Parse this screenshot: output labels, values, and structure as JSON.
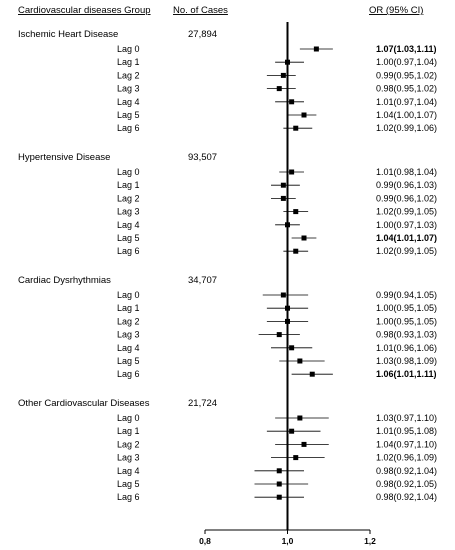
{
  "headers": {
    "group": "Cardiovascular diseases Group",
    "cases": "No. of Cases",
    "or": "OR (95% CI)"
  },
  "chart_data": {
    "type": "forest",
    "xlim": [
      0.8,
      1.2
    ],
    "x_ticks": [
      "0,8",
      "1,0",
      "1,2"
    ],
    "reference_line": 1.0,
    "groups": [
      {
        "name": "Ischemic Heart Disease",
        "cases": "27,894",
        "rows": [
          {
            "label": "Lag 0",
            "or": 1.07,
            "low": 1.03,
            "high": 1.11,
            "ci_text": "1.07(1.03,1.11)",
            "bold": true
          },
          {
            "label": "Lag 1",
            "or": 1.0,
            "low": 0.97,
            "high": 1.04,
            "ci_text": "1.00(0.97,1.04)",
            "bold": false
          },
          {
            "label": "Lag 2",
            "or": 0.99,
            "low": 0.95,
            "high": 1.02,
            "ci_text": "0.99(0.95,1.02)",
            "bold": false
          },
          {
            "label": "Lag 3",
            "or": 0.98,
            "low": 0.95,
            "high": 1.02,
            "ci_text": "0.98(0.95,1.02)",
            "bold": false
          },
          {
            "label": "Lag 4",
            "or": 1.01,
            "low": 0.97,
            "high": 1.04,
            "ci_text": "1.01(0.97,1.04)",
            "bold": false
          },
          {
            "label": "Lag 5",
            "or": 1.04,
            "low": 1.0,
            "high": 1.07,
            "ci_text": "1.04(1.00,1.07)",
            "bold": false
          },
          {
            "label": "Lag 6",
            "or": 1.02,
            "low": 0.99,
            "high": 1.06,
            "ci_text": "1.02(0.99,1.06)",
            "bold": false
          }
        ]
      },
      {
        "name": "Hypertensive Disease",
        "cases": "93,507",
        "rows": [
          {
            "label": "Lag 0",
            "or": 1.01,
            "low": 0.98,
            "high": 1.04,
            "ci_text": "1.01(0.98,1.04)",
            "bold": false
          },
          {
            "label": "Lag 1",
            "or": 0.99,
            "low": 0.96,
            "high": 1.03,
            "ci_text": "0.99(0.96,1.03)",
            "bold": false
          },
          {
            "label": "Lag 2",
            "or": 0.99,
            "low": 0.96,
            "high": 1.02,
            "ci_text": "0.99(0.96,1.02)",
            "bold": false
          },
          {
            "label": "Lag 3",
            "or": 1.02,
            "low": 0.99,
            "high": 1.05,
            "ci_text": "1.02(0.99,1.05)",
            "bold": false
          },
          {
            "label": "Lag 4",
            "or": 1.0,
            "low": 0.97,
            "high": 1.03,
            "ci_text": "1.00(0.97,1.03)",
            "bold": false
          },
          {
            "label": "Lag 5",
            "or": 1.04,
            "low": 1.01,
            "high": 1.07,
            "ci_text": "1.04(1.01,1.07)",
            "bold": true
          },
          {
            "label": "Lag 6",
            "or": 1.02,
            "low": 0.99,
            "high": 1.05,
            "ci_text": "1.02(0.99,1.05)",
            "bold": false
          }
        ]
      },
      {
        "name": "Cardiac Dysrhythmias",
        "cases": "34,707",
        "rows": [
          {
            "label": "Lag 0",
            "or": 0.99,
            "low": 0.94,
            "high": 1.05,
            "ci_text": "0.99(0.94,1.05)",
            "bold": false
          },
          {
            "label": "Lag 1",
            "or": 1.0,
            "low": 0.95,
            "high": 1.05,
            "ci_text": "1.00(0.95,1.05)",
            "bold": false
          },
          {
            "label": "Lag 2",
            "or": 1.0,
            "low": 0.95,
            "high": 1.05,
            "ci_text": "1.00(0.95,1.05)",
            "bold": false
          },
          {
            "label": "Lag 3",
            "or": 0.98,
            "low": 0.93,
            "high": 1.03,
            "ci_text": "0.98(0.93,1.03)",
            "bold": false
          },
          {
            "label": "Lag 4",
            "or": 1.01,
            "low": 0.96,
            "high": 1.06,
            "ci_text": "1.01(0.96,1.06)",
            "bold": false
          },
          {
            "label": "Lag 5",
            "or": 1.03,
            "low": 0.98,
            "high": 1.09,
            "ci_text": "1.03(0.98,1.09)",
            "bold": false
          },
          {
            "label": "Lag 6",
            "or": 1.06,
            "low": 1.01,
            "high": 1.11,
            "ci_text": "1.06(1.01,1.11)",
            "bold": true
          }
        ]
      },
      {
        "name": "Other Cardiovascular Diseases",
        "cases": "21,724",
        "rows": [
          {
            "label": "Lag 0",
            "or": 1.03,
            "low": 0.97,
            "high": 1.1,
            "ci_text": "1.03(0.97,1.10)",
            "bold": false
          },
          {
            "label": "Lag 1",
            "or": 1.01,
            "low": 0.95,
            "high": 1.08,
            "ci_text": "1.01(0.95,1.08)",
            "bold": false
          },
          {
            "label": "Lag 2",
            "or": 1.04,
            "low": 0.97,
            "high": 1.1,
            "ci_text": "1.04(0.97,1.10)",
            "bold": false
          },
          {
            "label": "Lag 3",
            "or": 1.02,
            "low": 0.96,
            "high": 1.09,
            "ci_text": "1.02(0.96,1.09)",
            "bold": false
          },
          {
            "label": "Lag 4",
            "or": 0.98,
            "low": 0.92,
            "high": 1.04,
            "ci_text": "0.98(0.92,1.04)",
            "bold": false
          },
          {
            "label": "Lag 5",
            "or": 0.98,
            "low": 0.92,
            "high": 1.05,
            "ci_text": "0.98(0.92,1.05)",
            "bold": false
          },
          {
            "label": "Lag 6",
            "or": 0.98,
            "low": 0.92,
            "high": 1.04,
            "ci_text": "0.98(0.92,1.04)",
            "bold": false
          }
        ]
      }
    ]
  }
}
